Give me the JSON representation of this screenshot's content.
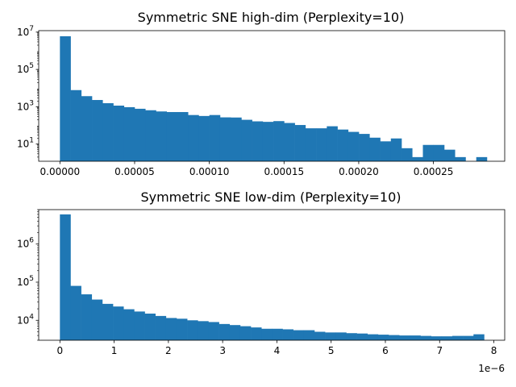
{
  "chart_data": [
    {
      "type": "bar",
      "title": "Symmetric SNE high-dim (Perplexity=10)",
      "xlabel": "",
      "ylabel": "",
      "yscale": "log",
      "bins": 40,
      "xlim": [
        -1.42e-05,
        0.0002977
      ],
      "ylim": [
        1.2,
        12000000
      ],
      "xticks": [
        0,
        5e-05,
        0.0001,
        0.00015,
        0.0002,
        0.00025
      ],
      "xtick_labels": [
        "0.00000",
        "0.00005",
        "0.00010",
        "0.00015",
        "0.00020",
        "0.00025"
      ],
      "yticks": [
        {
          "value": 10,
          "base": "10",
          "exp": "1"
        },
        {
          "value": 1000,
          "base": "10",
          "exp": "3"
        },
        {
          "value": 100000,
          "base": "10",
          "exp": "5"
        },
        {
          "value": 10000000,
          "base": "10",
          "exp": "7"
        }
      ],
      "bar_color": "#1f77b4",
      "counts": [
        6000000,
        7800,
        3700,
        2300,
        1550,
        1150,
        950,
        780,
        650,
        560,
        520,
        520,
        360,
        320,
        360,
        270,
        265,
        200,
        165,
        155,
        170,
        135,
        105,
        70,
        70,
        90,
        60,
        45,
        35,
        22,
        14,
        20,
        6,
        2,
        9,
        9,
        5,
        2,
        0,
        2
      ],
      "x_range": [
        0,
        0.0002858
      ]
    },
    {
      "type": "bar",
      "title": "Symmetric SNE low-dim (Perplexity=10)",
      "xlabel": "",
      "ylabel": "",
      "yscale": "log",
      "bins": 40,
      "xlim": [
        -3.91e-07,
        8.2e-06
      ],
      "ylim": [
        3000,
        8000000
      ],
      "xticks": [
        0,
        1,
        2,
        3,
        4,
        5,
        6,
        7,
        8
      ],
      "xtick_labels": [
        "0",
        "1",
        "2",
        "3",
        "4",
        "5",
        "6",
        "7",
        "8"
      ],
      "x_multiplier": 1e-06,
      "x_offset_label": "1e−6",
      "yticks": [
        {
          "value": 10000,
          "base": "10",
          "exp": "4"
        },
        {
          "value": 100000,
          "base": "10",
          "exp": "5"
        },
        {
          "value": 1000000,
          "base": "10",
          "exp": "6"
        }
      ],
      "bar_color": "#1f77b4",
      "counts": [
        6000000,
        80000,
        48000,
        35000,
        27000,
        23000,
        19500,
        17000,
        15000,
        13000,
        11500,
        11000,
        10000,
        9500,
        9000,
        8000,
        7500,
        7000,
        6500,
        6000,
        6000,
        5800,
        5500,
        5500,
        5000,
        4800,
        4800,
        4600,
        4500,
        4300,
        4200,
        4100,
        4000,
        4000,
        3900,
        3800,
        3800,
        3900,
        3900,
        4300
      ],
      "x_range": [
        0,
        7.82e-06
      ]
    }
  ]
}
